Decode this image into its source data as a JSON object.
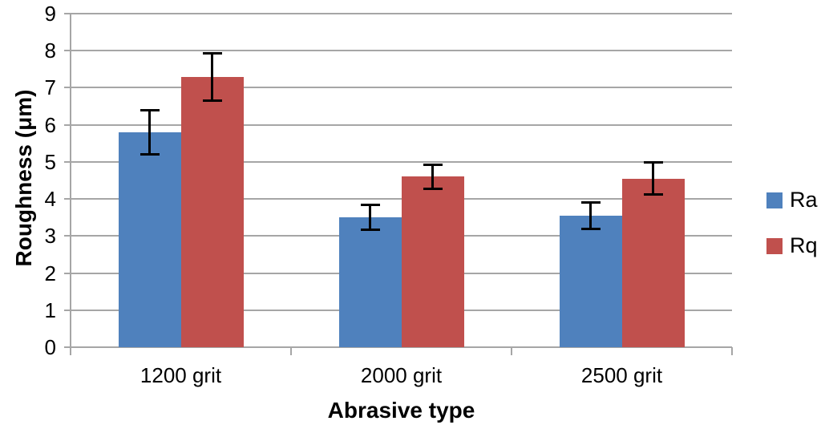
{
  "chart_data": {
    "type": "bar",
    "title": "",
    "xlabel": "Abrasive type",
    "ylabel": "Roughness (μm)",
    "categories": [
      "1200 grit",
      "2000 grit",
      "2500 grit"
    ],
    "series": [
      {
        "name": "Ra",
        "color": "#4F81BD",
        "values": [
          5.8,
          3.5,
          3.55
        ],
        "errors": [
          0.6,
          0.35,
          0.37
        ]
      },
      {
        "name": "Rq",
        "color": "#C0504D",
        "values": [
          7.3,
          4.6,
          4.55
        ],
        "errors": [
          0.65,
          0.33,
          0.45
        ]
      }
    ],
    "ylim": [
      0,
      9
    ],
    "yticks": [
      0,
      1,
      2,
      3,
      4,
      5,
      6,
      7,
      8,
      9
    ],
    "grid": true,
    "legend_position": "right",
    "colors": {
      "gridline": "#A6A6A6",
      "axis": "#A6A6A6",
      "error_bar": "#000000",
      "text": "#000000",
      "background": "#FFFFFF"
    }
  }
}
